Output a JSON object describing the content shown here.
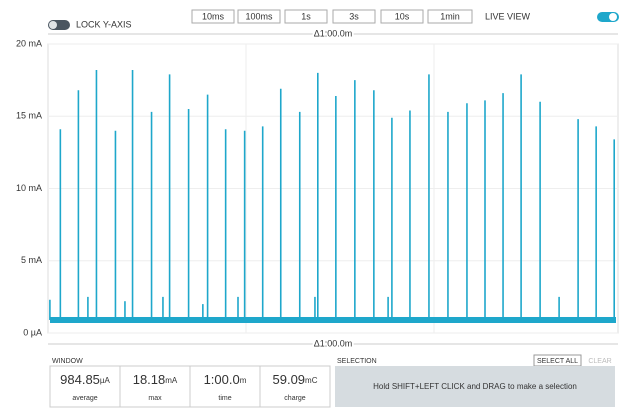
{
  "toolbar": {
    "lock_label": "LOCK Y-AXIS",
    "buttons": [
      "10ms",
      "100ms",
      "1s",
      "3s",
      "10s",
      "1min"
    ],
    "live_label": "LIVE VIEW"
  },
  "chart_data": {
    "type": "line",
    "delta_top": "Δ1:00.0m",
    "delta_bottom": "Δ1:00.0m",
    "x": [
      0.2,
      1.3,
      3.2,
      4.2,
      5.1,
      7.1,
      8.1,
      8.9,
      10.9,
      12.1,
      12.8,
      14.8,
      16.3,
      16.8,
      18.7,
      20.0,
      20.7,
      22.6,
      24.5,
      26.5,
      28.1,
      28.4,
      30.3,
      32.3,
      34.3,
      35.8,
      36.2,
      38.1,
      40.1,
      42.1,
      44.1,
      46.0,
      47.9,
      49.8,
      51.8,
      53.8,
      55.8,
      57.7,
      59.6
    ],
    "values": [
      2.3,
      14.1,
      16.8,
      2.5,
      18.2,
      14.0,
      2.2,
      18.2,
      15.3,
      2.5,
      17.9,
      15.5,
      2.0,
      16.5,
      14.1,
      2.5,
      14.0,
      14.3,
      16.9,
      15.3,
      2.5,
      18.0,
      16.4,
      17.5,
      16.8,
      2.5,
      14.9,
      15.4,
      17.9,
      15.3,
      15.9,
      16.1,
      16.6,
      17.9,
      16.0,
      2.5,
      14.8,
      14.3,
      13.4
    ],
    "baseline": 0.9,
    "color": "#1ea7cb",
    "xlim": [
      0,
      60
    ],
    "ylim": [
      0,
      20
    ],
    "yticks": [
      {
        "value": 0,
        "label": "0 µA"
      },
      {
        "value": 5,
        "label": "5 mA"
      },
      {
        "value": 10,
        "label": "10 mA"
      },
      {
        "value": 15,
        "label": "15 mA"
      },
      {
        "value": 20,
        "label": "20 mA"
      }
    ],
    "grid": true
  },
  "window": {
    "title": "WINDOW",
    "stats": [
      {
        "value": 984.85,
        "unit": "µA",
        "label": "average"
      },
      {
        "value": 18.18,
        "unit": "mA",
        "label": "max"
      },
      {
        "value": "1:00.0",
        "unit": "m",
        "label": "time"
      },
      {
        "value": 59.09,
        "unit": "mC",
        "label": "charge"
      }
    ]
  },
  "selection": {
    "title": "SELECTION",
    "select_all": "SELECT ALL",
    "clear": "CLEAR",
    "hint": "Hold SHIFT+LEFT CLICK and DRAG to make a selection"
  }
}
